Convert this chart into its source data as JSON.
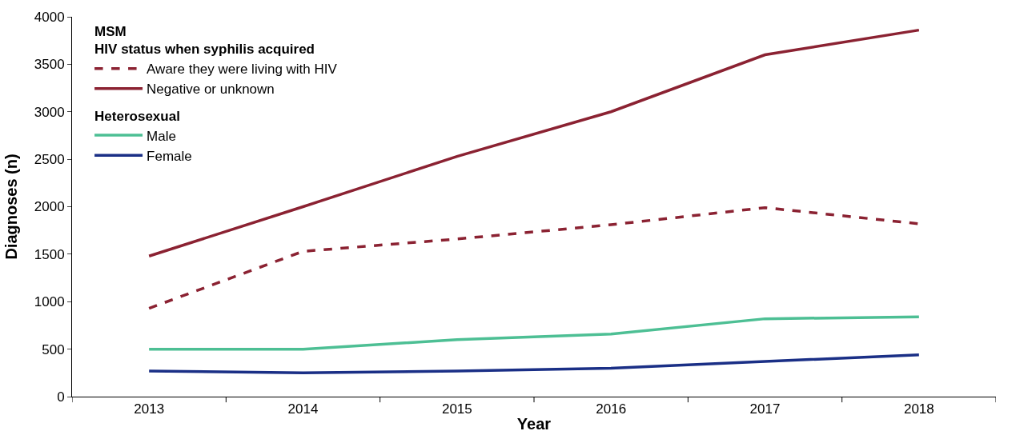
{
  "chart_data": {
    "type": "line",
    "xlabel": "Year",
    "ylabel": "Diagnoses (n)",
    "categories": [
      "2013",
      "2014",
      "2015",
      "2016",
      "2017",
      "2018"
    ],
    "series": [
      {
        "name": "Aware they were living with HIV",
        "color": "#8b2232",
        "line_style": "dashed",
        "values": [
          930,
          1530,
          1660,
          1810,
          1990,
          1820
        ]
      },
      {
        "name": "Negative or unknown",
        "color": "#8b2232",
        "line_style": "solid",
        "values": [
          1480,
          2000,
          2530,
          3000,
          3600,
          3860
        ]
      },
      {
        "name": "Male",
        "color": "#4dbf94",
        "line_style": "solid",
        "values": [
          500,
          500,
          600,
          660,
          820,
          840
        ]
      },
      {
        "name": "Female",
        "color": "#1a2f86",
        "line_style": "solid",
        "values": [
          270,
          250,
          270,
          300,
          370,
          440
        ]
      }
    ],
    "annotations": [
      "MSM",
      "HIV status when syphilis acquired",
      "Heterosexual"
    ],
    "ylim": [
      0,
      4000
    ],
    "yticks": [
      0,
      500,
      1000,
      1500,
      2000,
      2500,
      3000,
      3500,
      4000
    ],
    "legend": "top left",
    "marker": "none"
  }
}
